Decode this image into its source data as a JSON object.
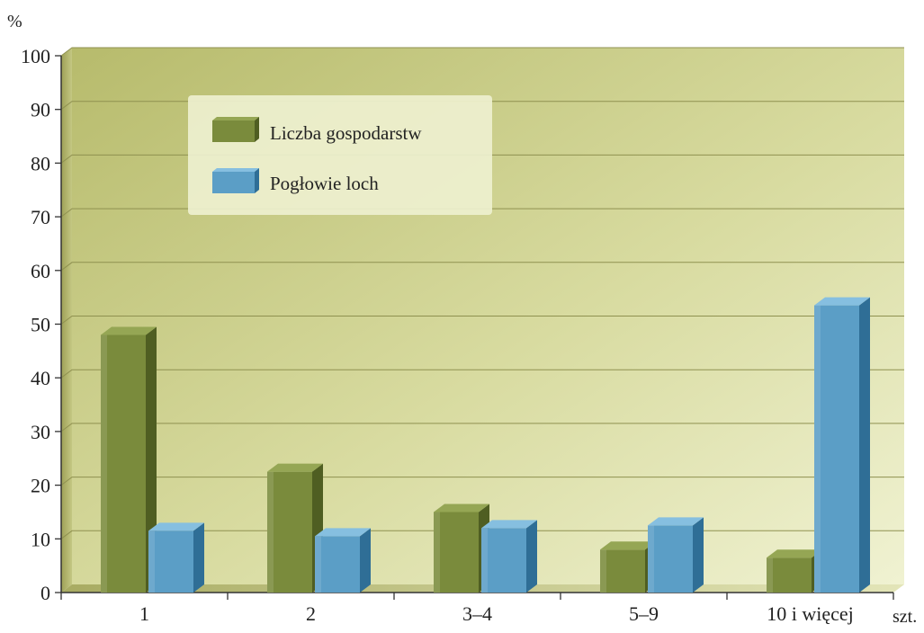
{
  "chart_data": {
    "type": "bar",
    "ylabel": "%",
    "xlabel": "szt.",
    "ylim": [
      0,
      100
    ],
    "yticks": [
      0,
      10,
      20,
      30,
      40,
      50,
      60,
      70,
      80,
      90,
      100
    ],
    "categories": [
      "1",
      "2",
      "3–4",
      "5–9",
      "10 i więcej"
    ],
    "series": [
      {
        "name": "Liczba gospodarstw",
        "values": [
          48,
          22.5,
          15,
          8,
          6.5
        ]
      },
      {
        "name": "Pogłowie loch",
        "values": [
          11.5,
          10.5,
          12,
          12.5,
          53.5
        ]
      }
    ],
    "legend_position": "top-left",
    "grid": true,
    "colors": {
      "series_front": [
        "#7a8b3c",
        "#5b9ec6"
      ],
      "series_side": [
        "#4f5e22",
        "#2f6e96"
      ],
      "series_top": [
        "#95a654",
        "#86bfe0"
      ],
      "plot_bg_light": "#eef0c8",
      "plot_bg_dark": "#b9bd70",
      "legend_bg": "#eef0cf"
    }
  }
}
